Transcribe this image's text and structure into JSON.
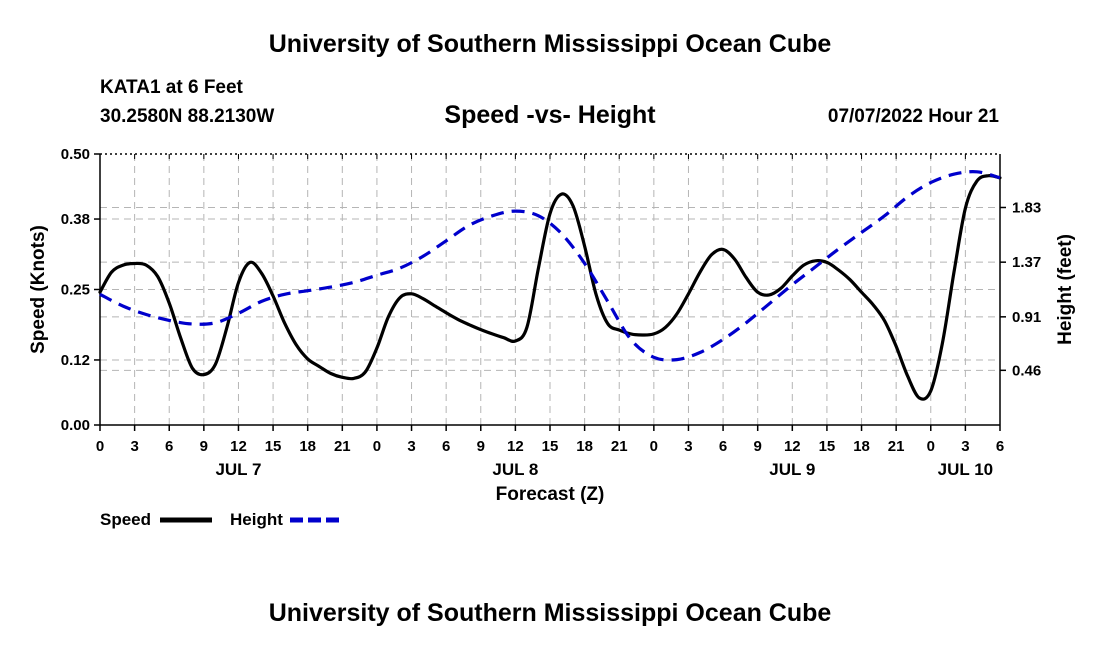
{
  "header": {
    "title": "University of Southern Mississippi Ocean Cube",
    "station": "KATA1 at 6 Feet",
    "coords": "30.2580N  88.2130W",
    "subtitle": "Speed -vs- Height",
    "datetime": "07/07/2022 Hour 21"
  },
  "footer": {
    "title": "University of Southern Mississippi Ocean Cube"
  },
  "chart_data": {
    "type": "line",
    "xlabel": "Forecast (Z)",
    "ylabel": "Speed (Knots)",
    "y2label": "Height (feet)",
    "xlim": [
      0,
      78
    ],
    "ylim": [
      0,
      0.5
    ],
    "y2lim": [
      0,
      2.28
    ],
    "grid": true,
    "x_tick_labels": [
      "0",
      "3",
      "6",
      "9",
      "12",
      "15",
      "18",
      "21",
      "0",
      "3",
      "6",
      "9",
      "12",
      "15",
      "18",
      "21",
      "0",
      "3",
      "6",
      "9",
      "12",
      "15",
      "18",
      "21",
      "0",
      "3",
      "6"
    ],
    "date_labels": [
      {
        "hour": 12,
        "label": "JUL 7"
      },
      {
        "hour": 36,
        "label": "JUL 8"
      },
      {
        "hour": 60,
        "label": "JUL 9"
      },
      {
        "hour": 75,
        "label": "JUL 10"
      }
    ],
    "y_ticks": [
      "0.00",
      "0.12",
      "0.25",
      "0.38",
      "0.50"
    ],
    "y2_ticks": [
      "0.46",
      "0.91",
      "1.37",
      "1.83"
    ],
    "legend": [
      "Speed",
      "Height"
    ],
    "series": [
      {
        "name": "Speed",
        "axis": "left",
        "color": "#000000",
        "x": [
          0,
          1,
          2,
          3,
          4,
          5,
          6,
          7,
          8,
          9,
          10,
          11,
          12,
          13,
          14,
          15,
          16,
          17,
          18,
          19,
          20,
          21,
          22,
          23,
          24,
          25,
          26,
          27,
          28,
          29,
          30,
          31,
          32,
          33,
          34,
          35,
          36,
          37,
          38,
          39,
          40,
          41,
          42,
          43,
          44,
          45,
          46,
          47,
          48,
          49,
          50,
          51,
          52,
          53,
          54,
          55,
          56,
          57,
          58,
          59,
          60,
          61,
          62,
          63,
          64,
          65,
          66,
          67,
          68,
          69,
          70,
          71,
          72,
          73,
          74,
          75,
          76,
          77,
          78
        ],
        "values": [
          0.245,
          0.282,
          0.295,
          0.298,
          0.295,
          0.274,
          0.225,
          0.16,
          0.105,
          0.093,
          0.112,
          0.18,
          0.263,
          0.3,
          0.28,
          0.238,
          0.188,
          0.148,
          0.122,
          0.108,
          0.095,
          0.088,
          0.086,
          0.098,
          0.142,
          0.2,
          0.235,
          0.242,
          0.233,
          0.22,
          0.207,
          0.195,
          0.185,
          0.176,
          0.168,
          0.161,
          0.155,
          0.18,
          0.29,
          0.39,
          0.426,
          0.404,
          0.33,
          0.24,
          0.187,
          0.175,
          0.168,
          0.166,
          0.168,
          0.18,
          0.205,
          0.242,
          0.282,
          0.314,
          0.324,
          0.306,
          0.272,
          0.245,
          0.24,
          0.252,
          0.275,
          0.295,
          0.303,
          0.3,
          0.286,
          0.268,
          0.245,
          0.222,
          0.192,
          0.145,
          0.09,
          0.05,
          0.063,
          0.15,
          0.28,
          0.4,
          0.45,
          0.46,
          0.456
        ]
      },
      {
        "name": "Height",
        "axis": "right",
        "color": "#0000cc",
        "x": [
          0,
          2,
          4,
          6,
          8,
          10,
          12,
          14,
          16,
          18,
          20,
          22,
          24,
          26,
          28,
          30,
          32,
          34,
          36,
          38,
          40,
          42,
          44,
          46,
          48,
          50,
          52,
          54,
          56,
          58,
          60,
          62,
          64,
          66,
          68,
          70,
          72,
          74,
          76,
          78
        ],
        "values": [
          1.1,
          1.0,
          0.93,
          0.88,
          0.85,
          0.86,
          0.94,
          1.04,
          1.1,
          1.13,
          1.16,
          1.2,
          1.26,
          1.32,
          1.42,
          1.55,
          1.68,
          1.76,
          1.8,
          1.76,
          1.61,
          1.36,
          1.04,
          0.72,
          0.57,
          0.55,
          0.61,
          0.72,
          0.86,
          1.02,
          1.18,
          1.33,
          1.48,
          1.62,
          1.76,
          1.92,
          2.04,
          2.11,
          2.13,
          2.08
        ]
      }
    ]
  }
}
